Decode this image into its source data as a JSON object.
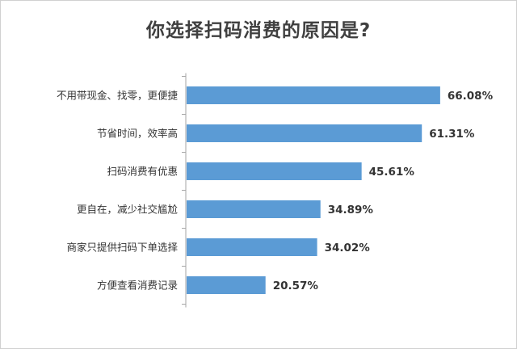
{
  "chart_data": {
    "type": "bar",
    "orientation": "horizontal",
    "title": "你选择扫码消费的原因是?",
    "categories": [
      "不用带现金、找零，更便捷",
      "节省时间，效率高",
      "扫码消费有优惠",
      "更自在，减少社交尴尬",
      "商家只提供扫码下单选择",
      "方便查看消费记录"
    ],
    "values": [
      66.08,
      61.31,
      45.61,
      34.89,
      34.02,
      20.57
    ],
    "value_labels": [
      "66.08%",
      "61.31%",
      "45.61%",
      "34.89%",
      "34.02%",
      "20.57%"
    ],
    "xlim": [
      0,
      75
    ],
    "grid": false,
    "bar_color": "#5b9bd5",
    "axis_color": "#a6a6a6",
    "xlabel": "",
    "ylabel": ""
  }
}
